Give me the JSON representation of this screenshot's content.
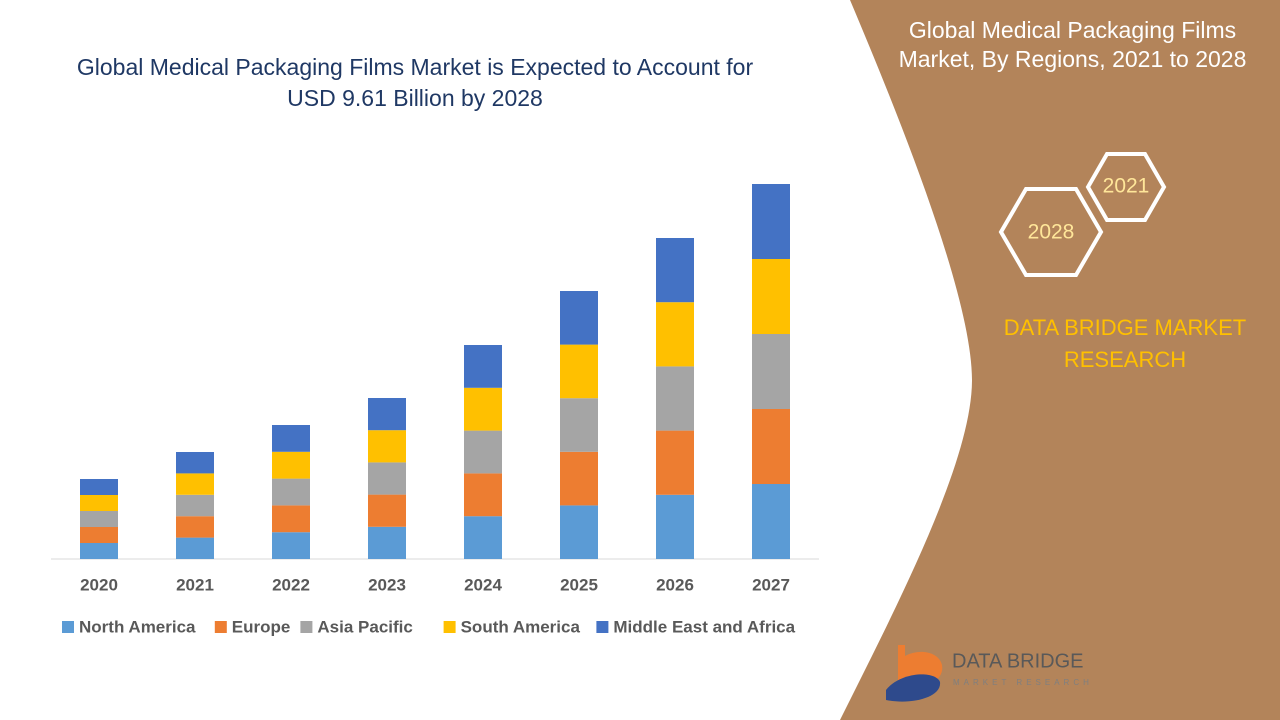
{
  "chart_data": {
    "type": "stacked_bar",
    "title": "Global Medical Packaging Films Market is Expected to Account for USD 9.61 Billion by 2028",
    "categories": [
      "2020",
      "2021",
      "2022",
      "2023",
      "2024",
      "2025",
      "2026",
      "2027"
    ],
    "series": [
      {
        "name": "North America",
        "color": "#5b9bd5",
        "values": [
          16,
          21.4,
          26.8,
          32.2,
          42.8,
          53.6,
          64.2,
          75
        ]
      },
      {
        "name": "Europe",
        "color": "#ed7d31",
        "values": [
          16,
          21.4,
          26.8,
          32.2,
          42.8,
          53.6,
          64.2,
          75
        ]
      },
      {
        "name": "Asia Pacific",
        "color": "#a5a5a5",
        "values": [
          16,
          21.4,
          26.8,
          32.2,
          42.8,
          53.6,
          64.2,
          75
        ]
      },
      {
        "name": "South America",
        "color": "#ffc000",
        "values": [
          16,
          21.4,
          26.8,
          32.2,
          42.8,
          53.6,
          64.2,
          75
        ]
      },
      {
        "name": "Middle East and Africa",
        "color": "#4472c4",
        "values": [
          16,
          21.4,
          26.8,
          32.2,
          42.8,
          53.6,
          64.2,
          75
        ]
      }
    ],
    "ylim": [
      0,
      400
    ]
  },
  "panel": {
    "title": "Global Medical Packaging Films Market, By Regions, 2021 to 2028",
    "hexagons": [
      "2021",
      "2028"
    ],
    "brand": "DATA BRIDGE MARKET RESEARCH"
  },
  "logo": {
    "name": "DATA BRIDGE",
    "tagline": "MARKET RESEARCH"
  }
}
